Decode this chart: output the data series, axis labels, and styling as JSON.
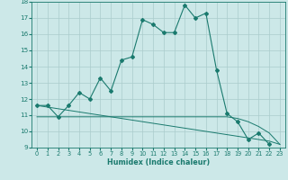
{
  "xlabel": "Humidex (Indice chaleur)",
  "x_values": [
    0,
    1,
    2,
    3,
    4,
    5,
    6,
    7,
    8,
    9,
    10,
    11,
    12,
    13,
    14,
    15,
    16,
    17,
    18,
    19,
    20,
    21,
    22,
    23
  ],
  "line1_y": [
    11.6,
    11.6,
    10.9,
    11.6,
    12.4,
    12.0,
    13.3,
    12.5,
    14.4,
    14.6,
    16.9,
    16.6,
    16.1,
    16.1,
    17.8,
    17.0,
    17.3,
    13.8,
    11.1,
    10.6,
    9.5,
    9.9,
    9.2,
    null
  ],
  "line2_y": [
    11.6,
    11.5,
    11.4,
    11.3,
    11.2,
    11.1,
    11.0,
    10.9,
    10.8,
    10.7,
    10.6,
    10.5,
    10.4,
    10.3,
    10.2,
    10.1,
    10.0,
    9.9,
    9.8,
    9.7,
    9.6,
    9.5,
    9.4,
    9.2
  ],
  "line3_y": [
    10.9,
    10.9,
    10.9,
    10.9,
    10.9,
    10.9,
    10.9,
    10.9,
    10.9,
    10.9,
    10.9,
    10.9,
    10.9,
    10.9,
    10.9,
    10.9,
    10.9,
    10.9,
    10.9,
    10.8,
    10.6,
    10.3,
    9.9,
    9.2
  ],
  "line_color": "#1a7a6e",
  "bg_color": "#cce8e8",
  "grid_color": "#aacccc",
  "ylim": [
    9,
    18
  ],
  "xlim": [
    -0.5,
    23.5
  ],
  "yticks": [
    9,
    10,
    11,
    12,
    13,
    14,
    15,
    16,
    17,
    18
  ],
  "xticks": [
    0,
    1,
    2,
    3,
    4,
    5,
    6,
    7,
    8,
    9,
    10,
    11,
    12,
    13,
    14,
    15,
    16,
    17,
    18,
    19,
    20,
    21,
    22,
    23
  ]
}
